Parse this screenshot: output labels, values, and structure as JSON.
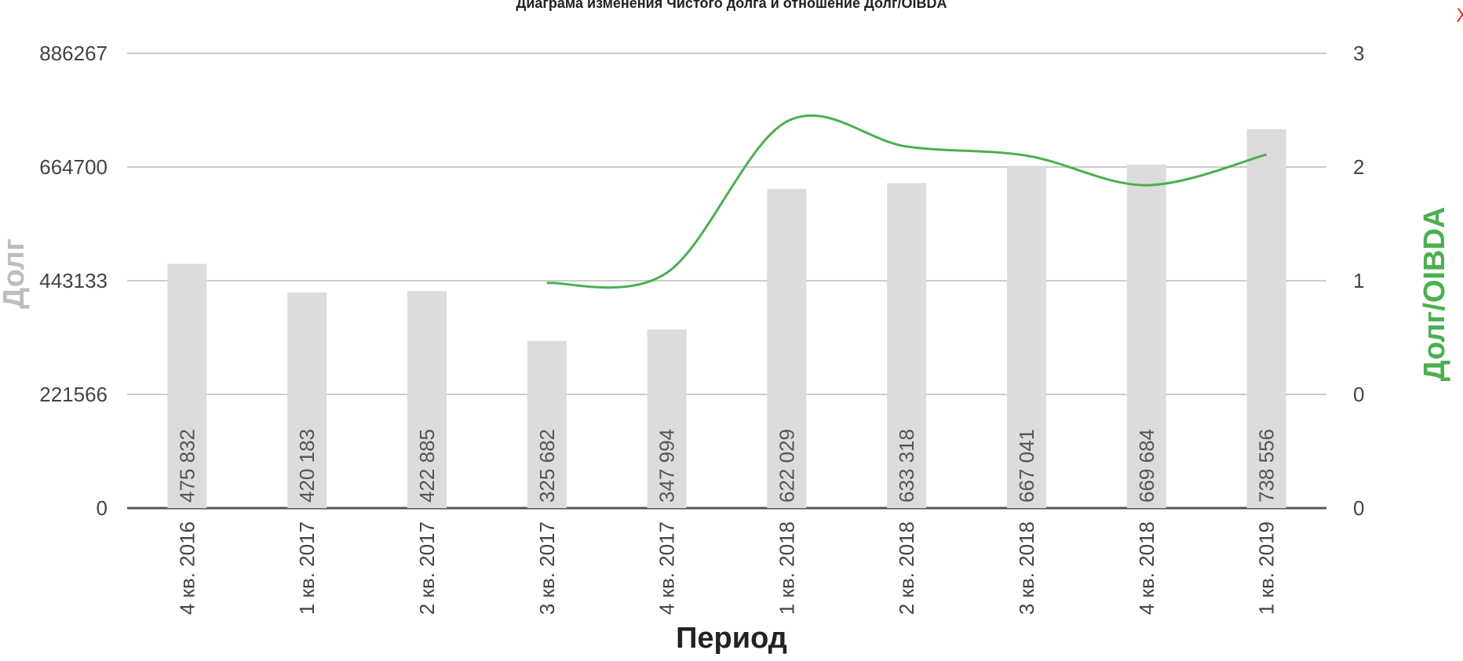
{
  "close_label": "X",
  "colors": {
    "bar": "#dcdcdc",
    "line": "#4caf50",
    "grid": "#cccccc",
    "axis": "#555555",
    "close": "#e53935"
  },
  "chart_data": {
    "type": "bar",
    "title": "Диаграма изменения Чистого долга и отношение Долг/OIBDA",
    "xlabel": "Период",
    "ylabel": "Долг",
    "y2label": "Долг/OIBDA",
    "categories": [
      "4 кв. 2016",
      "1 кв. 2017",
      "2 кв. 2017",
      "3 кв. 2017",
      "4 кв. 2017",
      "1 кв. 2018",
      "2 кв. 2018",
      "3 кв. 2018",
      "4 кв. 2018",
      "1 кв. 2019"
    ],
    "y_ticks": [
      "0",
      "221566",
      "443133",
      "664700",
      "886267"
    ],
    "y2_ticks": [
      "0",
      "0",
      "1",
      "2",
      "3"
    ],
    "ylim": [
      0,
      886267
    ],
    "y2lim": [
      -1,
      3
    ],
    "grid": true,
    "legend": "none",
    "series": [
      {
        "type": "bar",
        "values": [
          475832,
          420183,
          422885,
          325682,
          347994,
          622029,
          633318,
          667041,
          669684,
          738556
        ],
        "labels": [
          "475 832",
          "420 183",
          "422 885",
          "325 682",
          "347 994",
          "622 029",
          "633 318",
          "667 041",
          "669 684",
          "738 556"
        ]
      },
      {
        "type": "line",
        "axis": "right",
        "values": [
          null,
          null,
          null,
          0.98,
          1.07,
          2.4,
          2.18,
          2.1,
          1.84,
          2.11
        ]
      }
    ]
  }
}
